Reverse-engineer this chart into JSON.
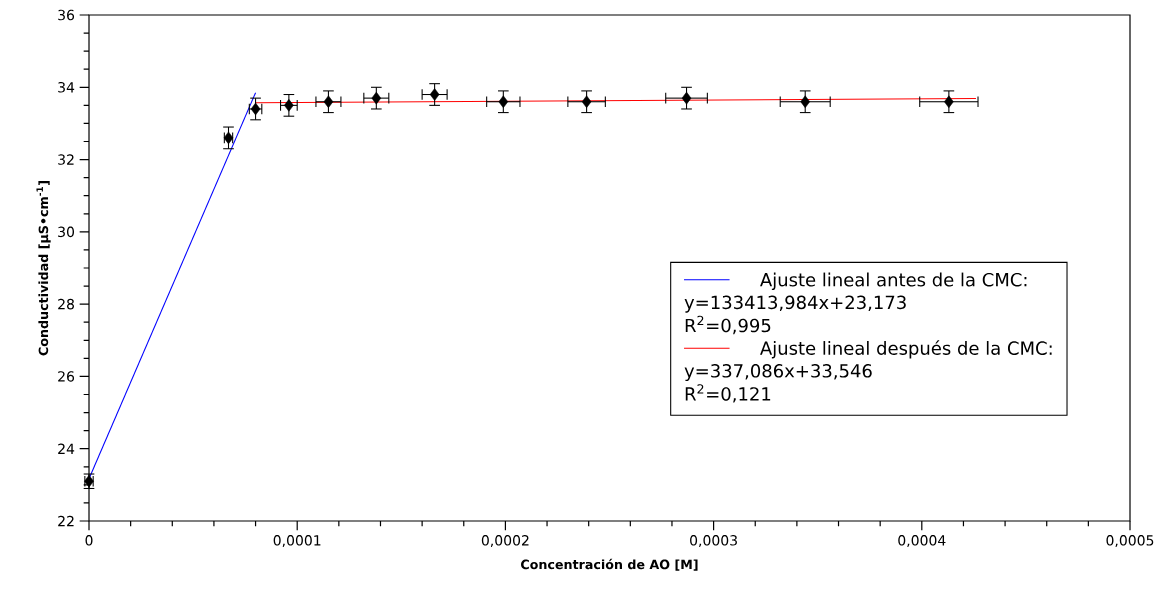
{
  "chart_data": {
    "type": "scatter",
    "xlabel": "Concentración de AO [M]",
    "ylabel": "Conductividad [μS•cm$^{-1}$]",
    "xlim": [
      0,
      0.0005
    ],
    "ylim": [
      22,
      36
    ],
    "xticks": [
      0,
      {
        "value": 0.0001,
        "label": "0,0001"
      },
      {
        "value": 0.0002,
        "label": "0,0002"
      },
      {
        "value": 0.0003,
        "label": "0,0003"
      },
      {
        "value": 0.0004,
        "label": "0,0004"
      },
      {
        "value": 0.0005,
        "label": "0,0005"
      }
    ],
    "yticks": [
      22,
      24,
      26,
      28,
      30,
      32,
      34,
      36
    ],
    "grid": false,
    "legend": "right",
    "series": [
      {
        "type": "line",
        "name": "Ajuste lineal antes de la CMC:",
        "color": "#0000ff",
        "x": [
          0,
          8e-05
        ],
        "values": [
          23.17,
          33.85
        ]
      },
      {
        "type": "line",
        "name": "Ajuste lineal después de la CMC:",
        "color": "#ff0000",
        "x": [
          8e-05,
          0.000426
        ],
        "values": [
          33.57,
          33.69
        ]
      },
      {
        "color": "#000000",
        "marker": "diamond",
        "x": [
          0,
          6.7e-05,
          8e-05,
          9.6e-05,
          0.000115,
          0.000138,
          0.000166,
          0.000199,
          0.000239,
          0.000287,
          0.000344,
          0.000413
        ],
        "values": [
          23.1,
          32.6,
          33.4,
          33.5,
          33.6,
          33.7,
          33.8,
          33.6,
          33.6,
          33.7,
          33.6,
          33.6
        ],
        "errors": [
          0.2,
          0.3,
          0.3,
          0.3,
          0.3,
          0.3,
          0.3,
          0.3,
          0.3,
          0.3,
          0.3,
          0.3
        ],
        "xerrors": [
          2e-06,
          2e-06,
          3e-06,
          4e-06,
          6e-06,
          6e-06,
          6e-06,
          8e-06,
          9e-06,
          1e-05,
          1.2e-05,
          1.4e-05
        ]
      }
    ],
    "annotations": [
      "y=133413,984x+23,173",
      "R$^{2}$=0,995",
      "y=337,086x+33,546",
      "R$^{2}$=0,121"
    ]
  }
}
